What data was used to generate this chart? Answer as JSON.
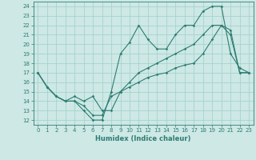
{
  "title": "",
  "xlabel": "Humidex (Indice chaleur)",
  "bg_color": "#cde8e5",
  "grid_color": "#9ecfcb",
  "line_color": "#2e7d72",
  "xlim": [
    -0.5,
    23.5
  ],
  "ylim": [
    11.5,
    24.5
  ],
  "yticks": [
    12,
    13,
    14,
    15,
    16,
    17,
    18,
    19,
    20,
    21,
    22,
    23,
    24
  ],
  "xticks": [
    0,
    1,
    2,
    3,
    4,
    5,
    6,
    7,
    8,
    9,
    10,
    11,
    12,
    13,
    14,
    15,
    16,
    17,
    18,
    19,
    20,
    21,
    22,
    23
  ],
  "line1_x": [
    0,
    1,
    2,
    3,
    4,
    5,
    6,
    7,
    8,
    9,
    10,
    11,
    12,
    13,
    14,
    15,
    16,
    17,
    18,
    19,
    20,
    21,
    22,
    23
  ],
  "line1_y": [
    17,
    15.5,
    14.5,
    14,
    14,
    13,
    12,
    12,
    15,
    19,
    20.2,
    22,
    20.5,
    19.5,
    19.5,
    21,
    22,
    22,
    23.5,
    24,
    24,
    19,
    17.5,
    17
  ],
  "line2_x": [
    0,
    1,
    2,
    3,
    4,
    5,
    6,
    7,
    8,
    9,
    10,
    11,
    12,
    13,
    14,
    15,
    16,
    17,
    18,
    19,
    20,
    21,
    22,
    23
  ],
  "line2_y": [
    17,
    15.5,
    14.5,
    14,
    14.5,
    14,
    14.5,
    13,
    13,
    15,
    16,
    17,
    17.5,
    18,
    18.5,
    19,
    19.5,
    20,
    21,
    22,
    22,
    21.5,
    17,
    17
  ],
  "line3_x": [
    0,
    1,
    2,
    3,
    4,
    5,
    6,
    7,
    8,
    9,
    10,
    11,
    12,
    13,
    14,
    15,
    16,
    17,
    18,
    19,
    20,
    21,
    22,
    23
  ],
  "line3_y": [
    17,
    15.5,
    14.5,
    14,
    14,
    13.5,
    12.5,
    12.5,
    14.5,
    15,
    15.5,
    16,
    16.5,
    16.8,
    17,
    17.5,
    17.8,
    18,
    19,
    20.5,
    22,
    21,
    17,
    17
  ],
  "tick_fontsize": 5.0,
  "xlabel_fontsize": 6.0,
  "marker_size": 1.8,
  "line_width": 0.8
}
